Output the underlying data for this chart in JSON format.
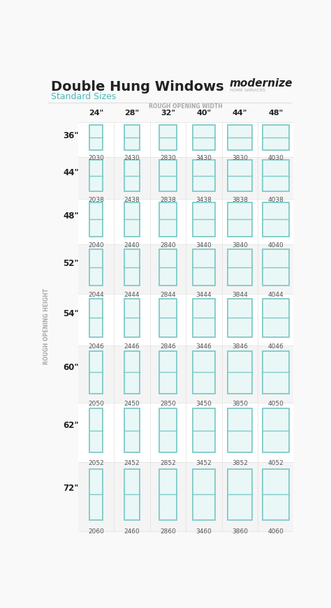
{
  "title": "Double Hung Windows",
  "subtitle": "Standard Sizes",
  "brand_name": "modernize",
  "brand_sub": "HOME SERVICES",
  "col_header_label": "ROUGH OPENING WIDTH",
  "row_header_label": "ROUGH OPENING HEIGHT",
  "col_widths": [
    "24\"",
    "28\"",
    "32\"",
    "40\"",
    "44\"",
    "48\""
  ],
  "row_heights": [
    "36\"",
    "44\"",
    "48\"",
    "52\"",
    "54\"",
    "60\"",
    "62\"",
    "72\""
  ],
  "codes": [
    [
      "2030",
      "2430",
      "2830",
      "3430",
      "3830",
      "4030"
    ],
    [
      "2038",
      "2438",
      "2838",
      "3438",
      "3838",
      "4038"
    ],
    [
      "2040",
      "2440",
      "2840",
      "3440",
      "3840",
      "4040"
    ],
    [
      "2044",
      "2444",
      "2844",
      "3444",
      "3844",
      "4044"
    ],
    [
      "2046",
      "2446",
      "2846",
      "3446",
      "3846",
      "4046"
    ],
    [
      "2050",
      "2450",
      "2850",
      "3450",
      "3850",
      "4050"
    ],
    [
      "2052",
      "2452",
      "2852",
      "3452",
      "3852",
      "4052"
    ],
    [
      "2060",
      "2460",
      "2860",
      "3460",
      "3860",
      "4060"
    ]
  ],
  "bg_color": "#f9f9f9",
  "window_border_color": "#7ecac8",
  "window_fill_color": "#eaf7f7",
  "title_color": "#222222",
  "subtitle_color": "#4db8b8",
  "label_color": "#aaaaaa",
  "row_label_color": "#222222",
  "col_label_color": "#222222",
  "code_color": "#555555",
  "header_label_fontsize": 5.5,
  "col_label_fontsize": 8,
  "row_label_fontsize": 8,
  "code_fontsize": 6.5,
  "title_fontsize": 14,
  "subtitle_fontsize": 9
}
